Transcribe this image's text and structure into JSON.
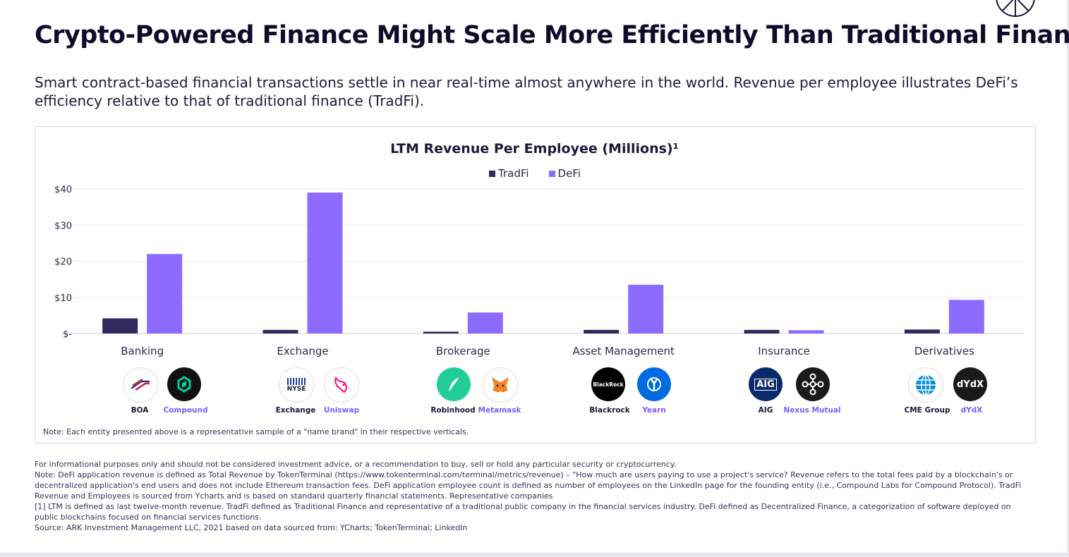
{
  "title": "Crypto-Powered Finance Might Scale More Efficiently Than Traditional Finance",
  "subtitle": "Smart contract-based financial transactions settle in near real-time almost anywhere in the world. Revenue per employee illustrates DeFi’s efficiency relative to that of traditional finance (TradFi).",
  "colors": {
    "tradfi": "#2f2a5e",
    "defi": "#8e6bff",
    "defi_label": "#7b5cf5",
    "grid": "#e8e8ee"
  },
  "chart_data": {
    "type": "bar",
    "title": "LTM Revenue Per Employee (Millions)¹",
    "categories": [
      "Banking",
      "Exchange",
      "Brokerage",
      "Asset Management",
      "Insurance",
      "Derivatives"
    ],
    "series": [
      {
        "name": "TradFi",
        "values": [
          4.2,
          1.0,
          0.5,
          1.0,
          1.0,
          1.1
        ]
      },
      {
        "name": "DeFi",
        "values": [
          22.0,
          39.0,
          5.8,
          13.5,
          0.9,
          9.3
        ]
      }
    ],
    "y_ticks": [
      "$-",
      "$10",
      "$20",
      "$30",
      "$40"
    ],
    "ylim": [
      0,
      40
    ],
    "grid": true,
    "legend_position": "top-center"
  },
  "logos": [
    {
      "tradfi": {
        "label": "BOA",
        "icon": "bank-of-america-icon"
      },
      "defi": {
        "label": "Compound",
        "icon": "compound-icon"
      }
    },
    {
      "tradfi": {
        "label": "Exchange",
        "icon": "nyse-icon"
      },
      "defi": {
        "label": "Uniswap",
        "icon": "uniswap-icon"
      }
    },
    {
      "tradfi": {
        "label": "Robinhood",
        "icon": "robinhood-icon"
      },
      "defi": {
        "label": "Metamask",
        "icon": "metamask-icon"
      }
    },
    {
      "tradfi": {
        "label": "Blackrock",
        "icon": "blackrock-icon"
      },
      "defi": {
        "label": "Yearn",
        "icon": "yearn-icon"
      }
    },
    {
      "tradfi": {
        "label": "AIG",
        "icon": "aig-icon"
      },
      "defi": {
        "label": "Nexus Mutual",
        "icon": "nexus-mutual-icon"
      }
    },
    {
      "tradfi": {
        "label": "CME Group",
        "icon": "cme-group-icon"
      },
      "defi": {
        "label": "dYdX",
        "icon": "dydx-icon"
      }
    }
  ],
  "logo_text": {
    "nyse": "NYSE",
    "blackrock": "BlackRock",
    "aig": "AIG",
    "dydx": "dYdX"
  },
  "chart_note": "Note: Each entity presented above is a representative sample of a \"name brand\" in their respective verticals.",
  "footer": [
    "For informational purposes only and should not be considered investment advice, or a recommendation to buy, sell or hold any particular security or cryptocurrency.",
    "Note: DeFi application revenue is defined as Total Revenue by TokenTerminal (https://www.tokenterminal.com/terminal/metrics/revenue) – \"How much are users paying to use a project's service? Revenue refers to the total fees paid by a blockchain's or decentralized application's end users and does not include Ethereum transaction fees. DeFi application employee count is defined as number of employees on the LinkedIn page for the founding entity (i.e., Compound Labs for Compound Protocol). TradFi Revenue and Employees is sourced from Ycharts and is based on standard quarterly financial statements. Representative companies",
    "[1] LTM is defined as last twelve-month revenue. TradFi defined as Traditional Finance and representative of a traditional public company in the financial services industry. DeFi defined as Decentralized Finance, a categorization of software deployed on public blockchains focused on financial services functions.",
    "Source: ARK Investment Management LLC, 2021 based on data sourced from: YCharts; TokenTerminal; LinkedIn"
  ]
}
